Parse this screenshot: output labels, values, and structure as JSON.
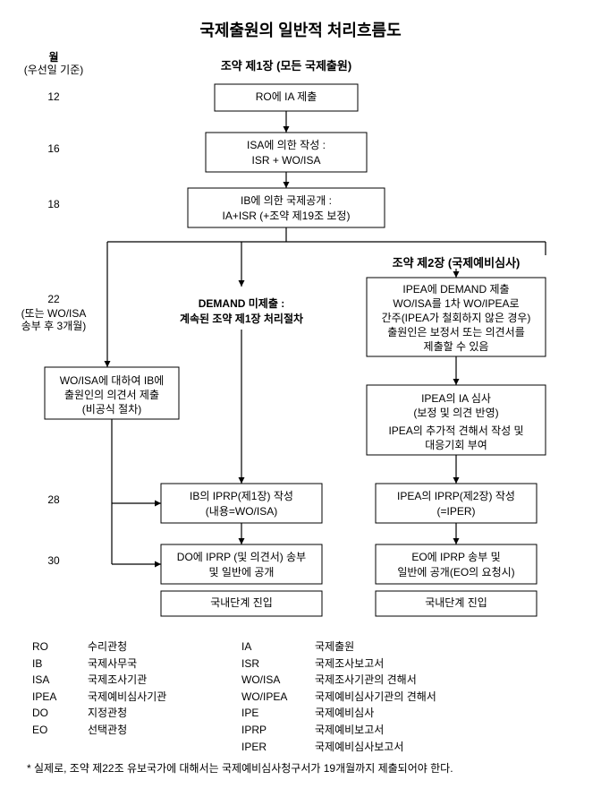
{
  "title": "국제출원의 일반적 처리흐름도",
  "timeline": {
    "header": "월",
    "subheader": "(우선일 기준)",
    "marks": {
      "m12": "12",
      "m16": "16",
      "m18": "18",
      "m22": "22",
      "m22_note1": "(또는 WO/ISA",
      "m22_note2": "송부 후 3개월)",
      "m28": "28",
      "m30": "30"
    }
  },
  "headers": {
    "chapter1": "조약 제1장 (모든 국제출원)",
    "chapter2": "조약 제2장 (국제예비심사)"
  },
  "boxes": {
    "ro": "RO에 IA 제출",
    "isa_l1": "ISA에 의한 작성 :",
    "isa_l2": "ISR  +  WO/ISA",
    "ib_l1": "IB에 의한 국제공개 :",
    "ib_l2": "IA+ISR (+조약 제19조 보정)",
    "demand_hdr1": "DEMAND 미제출 :",
    "demand_hdr2": "계속된 조약 제1장 처리절차",
    "ipea_demand_l1": "IPEA에 DEMAND 제출",
    "ipea_demand_l2": "WO/ISA를 1차 WO/IPEA로",
    "ipea_demand_l3": "간주(IPEA가 철회하지 않은 경우)",
    "ipea_demand_l4": "출원인은 보정서 또는 의견서를",
    "ipea_demand_l5": "제출할 수 있음",
    "woisa_l1": "WO/ISA에 대하여 IB에",
    "woisa_l2": "출원인의 의견서 제출",
    "woisa_l3": "(비공식 절차)",
    "ipea_exam_l1": "IPEA의 IA 심사",
    "ipea_exam_l2": "(보정 및 의견 반영)",
    "ipea_exam_l3": "IPEA의 추가적 견해서 작성 및",
    "ipea_exam_l4": "대응기회 부여",
    "iprp1_l1": "IB의 IPRP(제1장) 작성",
    "iprp1_l2": "(내용=WO/ISA)",
    "iprp2_l1": "IPEA의 IPRP(제2장) 작성",
    "iprp2_l2": "(=IPER)",
    "do_l1": "DO에 IPRP (및 의견서) 송부",
    "do_l2": "및 일반에 공개",
    "eo_l1": "EO에 IPRP 송부 및",
    "eo_l2": "일반에 공개(EO의 요청시)",
    "national1": "국내단계 진입",
    "national2": "국내단계 진입"
  },
  "glossary": [
    {
      "a": "RO",
      "d": "수리관청",
      "a2": "IA",
      "d2": "국제출원"
    },
    {
      "a": "IB",
      "d": "국제사무국",
      "a2": "ISR",
      "d2": "국제조사보고서"
    },
    {
      "a": "ISA",
      "d": "국제조사기관",
      "a2": "WO/ISA",
      "d2": "국제조사기관의 견해서"
    },
    {
      "a": "IPEA",
      "d": "국제예비심사기관",
      "a2": "WO/IPEA",
      "d2": "국제예비심사기관의 견해서"
    },
    {
      "a": "DO",
      "d": "지정관청",
      "a2": "IPE",
      "d2": "국제예비심사"
    },
    {
      "a": "EO",
      "d": "선택관청",
      "a2": "IPRP",
      "d2": "국제예비보고서"
    },
    {
      "a": "",
      "d": "",
      "a2": "IPER",
      "d2": "국제예비심사보고서"
    }
  ],
  "footnote": "* 실제로, 조약 제22조 유보국가에 대해서는 국제예비심사청구서가 19개월까지 제출되어야 한다.",
  "style": {
    "stroke": "#000000",
    "fill": "#ffffff",
    "arrow_len": 8
  }
}
